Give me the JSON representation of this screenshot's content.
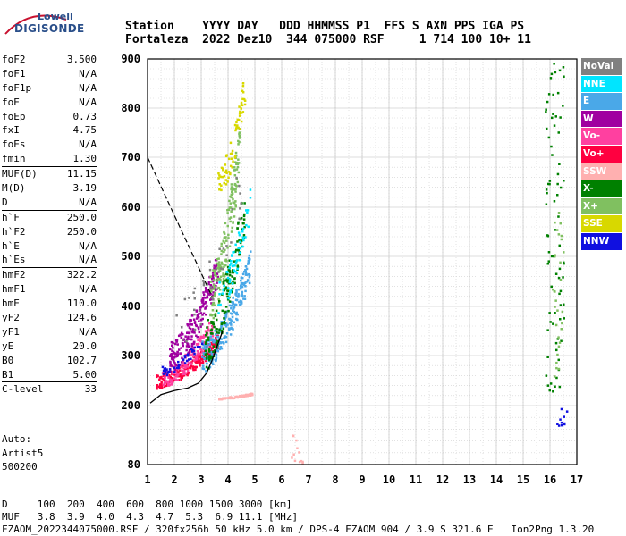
{
  "logo": {
    "brand": "Lowell",
    "product": "DIGISONDE"
  },
  "header": {
    "line1": "Station    YYYY DAY   DDD HHMMSS P1  FFS S AXN PPS IGA PS",
    "line2": "Fortaleza  2022 Dez10  344 075000 RSF     1 714 100 10+ 11"
  },
  "params": [
    {
      "label": "foF2",
      "value": "3.500"
    },
    {
      "label": "foF1",
      "value": "N/A"
    },
    {
      "label": "foF1p",
      "value": "N/A"
    },
    {
      "label": "foE",
      "value": "N/A"
    },
    {
      "label": "foEp",
      "value": "0.73"
    },
    {
      "label": "fxI",
      "value": "4.75"
    },
    {
      "label": "foEs",
      "value": "N/A"
    },
    {
      "label": "fmin",
      "value": "1.30"
    },
    {
      "label": "MUF(D)",
      "value": "11.15",
      "divider": true
    },
    {
      "label": "M(D)",
      "value": "3.19"
    },
    {
      "label": "D",
      "value": "N/A"
    },
    {
      "label": "h`F",
      "value": "250.0",
      "divider": true
    },
    {
      "label": "h`F2",
      "value": "250.0"
    },
    {
      "label": "h`E",
      "value": "N/A"
    },
    {
      "label": "h`Es",
      "value": "N/A"
    },
    {
      "label": "hmF2",
      "value": "322.2",
      "divider": true
    },
    {
      "label": "hmF1",
      "value": "N/A"
    },
    {
      "label": "hmE",
      "value": "110.0"
    },
    {
      "label": "yF2",
      "value": "124.6"
    },
    {
      "label": "yF1",
      "value": "N/A"
    },
    {
      "label": "yE",
      "value": "20.0"
    },
    {
      "label": "B0",
      "value": "102.7"
    },
    {
      "label": "B1",
      "value": "5.00"
    },
    {
      "label": "C-level",
      "value": "33",
      "divider": true
    }
  ],
  "autoscale": {
    "line1": "Auto:",
    "line2": "Artist5",
    "line3": "500200"
  },
  "footer": {
    "line1": "D     100  200  400  600  800 1000 1500 3000 [km]",
    "line2": "MUF   3.8  3.9  4.0  4.3  4.7  5.3  6.9 11.1 [MHz]",
    "line3": "FZAOM_2022344075000.RSF / 320fx256h 50 kHz 5.0 km / DPS-4 FZAOM 904 / 3.9 S 321.6 E   Ion2Png 1.3.20"
  },
  "legend": [
    {
      "label": "NoVal",
      "color": "#808080"
    },
    {
      "label": "NNE",
      "color": "#00e5ff"
    },
    {
      "label": "E",
      "color": "#4aa8e8"
    },
    {
      "label": "W",
      "color": "#a000a0"
    },
    {
      "label": "Vo-",
      "color": "#ff40a0"
    },
    {
      "label": "Vo+",
      "color": "#ff0040"
    },
    {
      "label": "SSW",
      "color": "#ffb0b0"
    },
    {
      "label": "X-",
      "color": "#008000"
    },
    {
      "label": "X+",
      "color": "#80c060"
    },
    {
      "label": "SSE",
      "color": "#d8d800"
    },
    {
      "label": "NNW",
      "color": "#1010e0"
    }
  ],
  "chart_data": {
    "type": "scatter",
    "x_ticks": [
      "1",
      "2",
      "3",
      "4",
      "5",
      "6",
      "7",
      "8",
      "9",
      "10",
      "11",
      "12",
      "13",
      "14",
      "15",
      "16",
      "17"
    ],
    "y_ticks": [
      "80",
      "200",
      "300",
      "400",
      "500",
      "600",
      "700",
      "800",
      "900"
    ],
    "xlim": [
      1,
      17
    ],
    "y_tick_values": [
      80,
      200,
      300,
      400,
      500,
      600,
      700,
      800,
      900
    ],
    "grid": true,
    "profile_curve": {
      "x": [
        1.1,
        1.5,
        2.0,
        2.5,
        2.9,
        3.2,
        3.4,
        3.6,
        3.8
      ],
      "y": [
        205,
        222,
        230,
        235,
        245,
        265,
        290,
        320,
        350
      ]
    },
    "dashed_line": {
      "x": [
        1.0,
        1.6,
        2.2,
        2.8,
        3.4
      ],
      "y": [
        700,
        630,
        560,
        490,
        420
      ]
    },
    "clusters": [
      {
        "color": "#ff0040",
        "x": [
          1.3,
          3.6
        ],
        "y": [
          250,
          330
        ],
        "n": 220
      },
      {
        "color": "#ff40a0",
        "x": [
          1.5,
          3.4
        ],
        "y": [
          255,
          360
        ],
        "n": 140
      },
      {
        "color": "#a000a0",
        "x": [
          1.8,
          3.6
        ],
        "y": [
          300,
          480
        ],
        "n": 230
      },
      {
        "color": "#4aa8e8",
        "x": [
          3.0,
          4.8
        ],
        "y": [
          300,
          480
        ],
        "n": 230
      },
      {
        "color": "#80c060",
        "x": [
          3.3,
          4.4
        ],
        "y": [
          420,
          720
        ],
        "n": 160
      },
      {
        "color": "#008000",
        "x": [
          3.1,
          4.6
        ],
        "y": [
          320,
          600
        ],
        "n": 150
      },
      {
        "color": "#d8d800",
        "x": [
          3.6,
          4.6
        ],
        "y": [
          640,
          840
        ],
        "n": 70
      },
      {
        "color": "#00e5ff",
        "x": [
          3.6,
          4.8
        ],
        "y": [
          420,
          620
        ],
        "n": 60
      },
      {
        "color": "#1010e0",
        "x": [
          1.5,
          3.0
        ],
        "y": [
          270,
          330
        ],
        "n": 40
      },
      {
        "color": "#ffb0b0",
        "x": [
          3.6,
          4.9
        ],
        "y": [
          216,
          225
        ],
        "n": 70
      },
      {
        "color": "#808080",
        "x": [
          2.0,
          4.5
        ],
        "y": [
          350,
          650
        ],
        "n": 40
      }
    ],
    "echo_columns": [
      {
        "color": "#008000",
        "x": [
          15.8,
          16.5
        ],
        "y": [
          220,
          900
        ],
        "n": 80
      },
      {
        "color": "#80c060",
        "x": [
          16.0,
          16.5
        ],
        "y": [
          250,
          600
        ],
        "n": 30
      },
      {
        "color": "#1010e0",
        "x": [
          16.2,
          16.6
        ],
        "y": [
          160,
          200
        ],
        "n": 10
      },
      {
        "color": "#ffb0b0",
        "x": [
          6.3,
          6.8
        ],
        "y": [
          85,
          150
        ],
        "n": 12
      }
    ]
  }
}
